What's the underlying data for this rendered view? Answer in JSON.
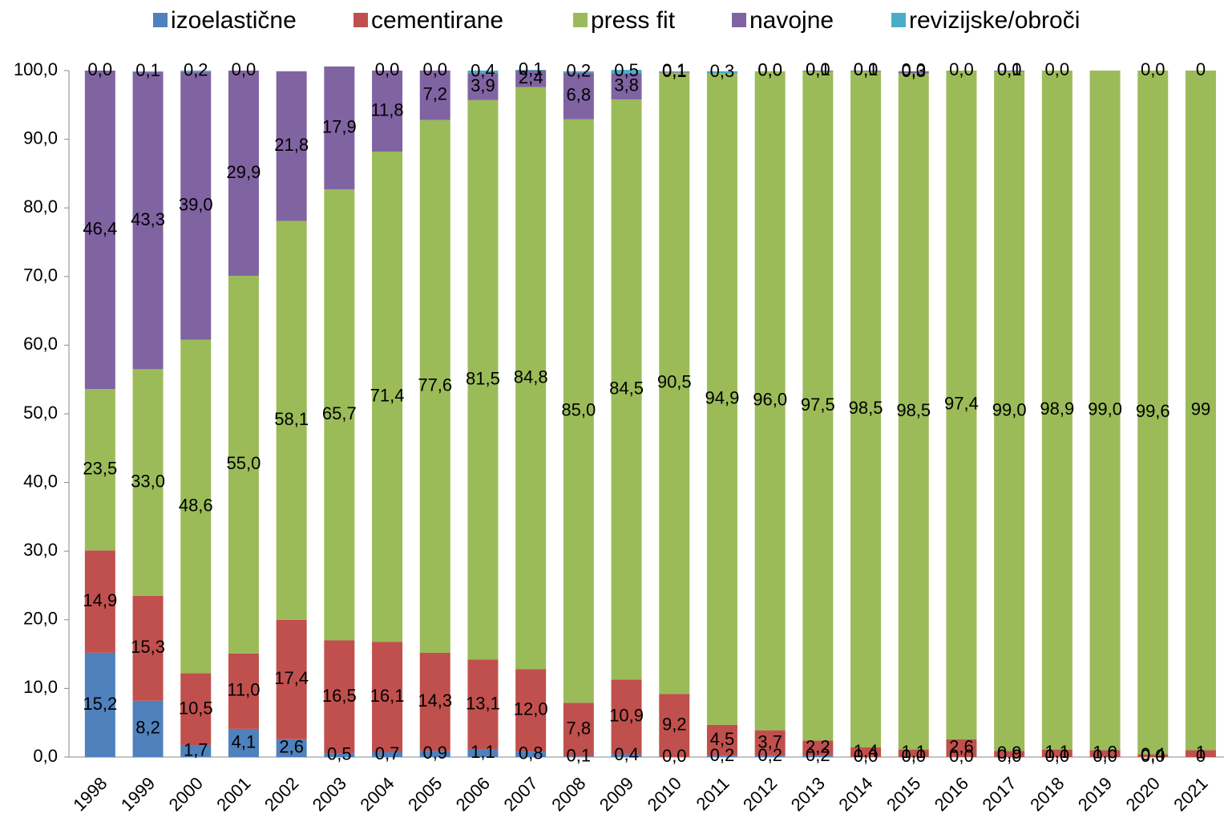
{
  "chart_data": {
    "type": "stacked_bar",
    "categories": [
      "1998",
      "1999",
      "2000",
      "2001",
      "2002",
      "2003",
      "2004",
      "2005",
      "2006",
      "2007",
      "2008",
      "2009",
      "2010",
      "2011",
      "2012",
      "2013",
      "2014",
      "2015",
      "2016",
      "2017",
      "2018",
      "2019",
      "2020",
      "2021"
    ],
    "series": [
      {
        "name": "izoelastične",
        "color": "#4f81bd",
        "values": [
          15.2,
          8.2,
          1.7,
          4.1,
          2.6,
          0.5,
          0.7,
          0.9,
          1.1,
          0.8,
          0.1,
          0.4,
          0.0,
          0.2,
          0.2,
          0.2,
          0.0,
          0.0,
          0.0,
          0.0,
          0.0,
          0.0,
          0.0,
          0
        ],
        "value_labels": [
          "15,2",
          "8,2",
          "1,7",
          "4,1",
          "2,6",
          "0,5",
          "0,7",
          "0,9",
          "1,1",
          "0,8",
          "0,1",
          "0,4",
          "0,0",
          "0,2",
          "0,2",
          "0,2",
          "0,0",
          "0,0",
          "0,0",
          "0,0",
          "0,0",
          "0,0",
          "0,0",
          "0"
        ]
      },
      {
        "name": "cementirane",
        "color": "#c0504d",
        "values": [
          14.9,
          15.3,
          10.5,
          11.0,
          17.4,
          16.5,
          16.1,
          14.3,
          13.1,
          12.0,
          7.8,
          10.9,
          9.2,
          4.5,
          3.7,
          2.2,
          1.4,
          1.1,
          2.6,
          0.9,
          1.1,
          1.0,
          0.4,
          1
        ],
        "value_labels": [
          "14,9",
          "15,3",
          "10,5",
          "11,0",
          "17,4",
          "16,5",
          "16,1",
          "14,3",
          "13,1",
          "12,0",
          "7,8",
          "10,9",
          "9,2",
          "4,5",
          "3,7",
          "2,2",
          "1,4",
          "1,1",
          "2,6",
          "0,9",
          "1,1",
          "1,0",
          "0,4",
          "1"
        ]
      },
      {
        "name": "press fit",
        "color": "#9bbb59",
        "values": [
          23.5,
          33.0,
          48.6,
          55.0,
          58.1,
          65.7,
          71.4,
          77.6,
          81.5,
          84.8,
          85.0,
          84.5,
          90.5,
          94.9,
          96.0,
          97.5,
          98.5,
          98.5,
          97.4,
          99.0,
          98.9,
          99.0,
          99.6,
          99
        ],
        "value_labels": [
          "23,5",
          "33,0",
          "48,6",
          "55,0",
          "58,1",
          "65,7",
          "71,4",
          "77,6",
          "81,5",
          "84,8",
          "85,0",
          "84,5",
          "90,5",
          "94,9",
          "96,0",
          "97,5",
          "98,5",
          "98,5",
          "97,4",
          "99,0",
          "98,9",
          "99,0",
          "99,6",
          "99"
        ]
      },
      {
        "name": "navojne",
        "color": "#8064a2",
        "values": [
          46.4,
          43.3,
          39.0,
          29.9,
          21.8,
          17.9,
          11.8,
          7.2,
          3.9,
          2.4,
          6.8,
          3.8,
          0.1,
          null,
          0.0,
          0.1,
          0.1,
          0.3,
          0.0,
          0.1,
          0.0,
          null,
          0.0,
          0
        ],
        "value_labels": [
          "46,4",
          "43,3",
          "39,0",
          "29,9",
          "21,8",
          "17,9",
          "11,8",
          "7,2",
          "3,9",
          "2,4",
          "6,8",
          "3,8",
          "0,1",
          null,
          "0,0",
          "0,1",
          "0,1",
          "0,3",
          "0,0",
          "0,1",
          "0,0",
          null,
          "0,0",
          "0"
        ]
      },
      {
        "name": "revizijske/obroči",
        "color": "#4bacc6",
        "values": [
          0.0,
          0.1,
          0.2,
          0.0,
          null,
          null,
          0.0,
          0.0,
          0.4,
          0.1,
          0.2,
          0.5,
          0.1,
          0.3,
          0.0,
          0.0,
          0.0,
          0.0,
          null,
          0.0,
          null,
          null,
          null,
          null
        ],
        "value_labels": [
          "0,0",
          "0,1",
          "0,2",
          "0,0",
          null,
          null,
          "0,0",
          "0,0",
          "0,4",
          "0,1",
          "0,2",
          "0,5",
          "0,1",
          "0,3",
          "0,0",
          "0,0",
          "0,0",
          "0,0",
          null,
          "0,0",
          null,
          null,
          null,
          null
        ]
      }
    ],
    "ylim": [
      0,
      100
    ],
    "yticks": [
      {
        "value": 0,
        "label": "0,0"
      },
      {
        "value": 10,
        "label": "10,0"
      },
      {
        "value": 20,
        "label": "20,0"
      },
      {
        "value": 30,
        "label": "30,0"
      },
      {
        "value": 40,
        "label": "40,0"
      },
      {
        "value": 50,
        "label": "50,0"
      },
      {
        "value": 60,
        "label": "60,0"
      },
      {
        "value": 70,
        "label": "70,0"
      },
      {
        "value": 80,
        "label": "80,0"
      },
      {
        "value": 90,
        "label": "90,0"
      },
      {
        "value": 100,
        "label": "100,0"
      }
    ],
    "legend": "top"
  }
}
